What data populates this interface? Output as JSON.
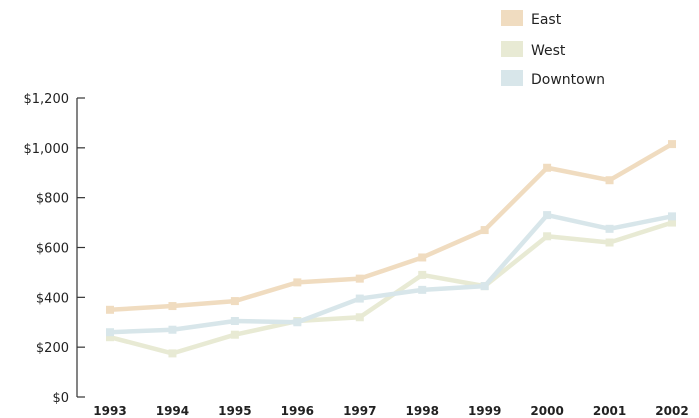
{
  "chart_data": {
    "type": "line",
    "title": "",
    "xlabel": "",
    "ylabel": "",
    "x": [
      "1993",
      "1994",
      "1995",
      "1996",
      "1997",
      "1998",
      "1999",
      "2000",
      "2001",
      "2002"
    ],
    "ylim": [
      0,
      1200
    ],
    "yticks": [
      0,
      200,
      400,
      600,
      800,
      1000,
      1200
    ],
    "ytick_labels": [
      "$0",
      "$200",
      "$400",
      "$600",
      "$800",
      "$1,000",
      "$1,200"
    ],
    "grid": false,
    "legend_position": "top-right",
    "series": [
      {
        "name": "East",
        "color": "#f0dcc0",
        "values": [
          350,
          365,
          385,
          460,
          475,
          560,
          670,
          920,
          870,
          1015
        ]
      },
      {
        "name": "West",
        "color": "#e8ead4",
        "values": [
          240,
          175,
          250,
          305,
          320,
          490,
          445,
          645,
          620,
          700
        ]
      },
      {
        "name": "Downtown",
        "color": "#d8e6ea",
        "values": [
          260,
          270,
          305,
          300,
          395,
          430,
          445,
          730,
          675,
          725
        ]
      }
    ]
  }
}
